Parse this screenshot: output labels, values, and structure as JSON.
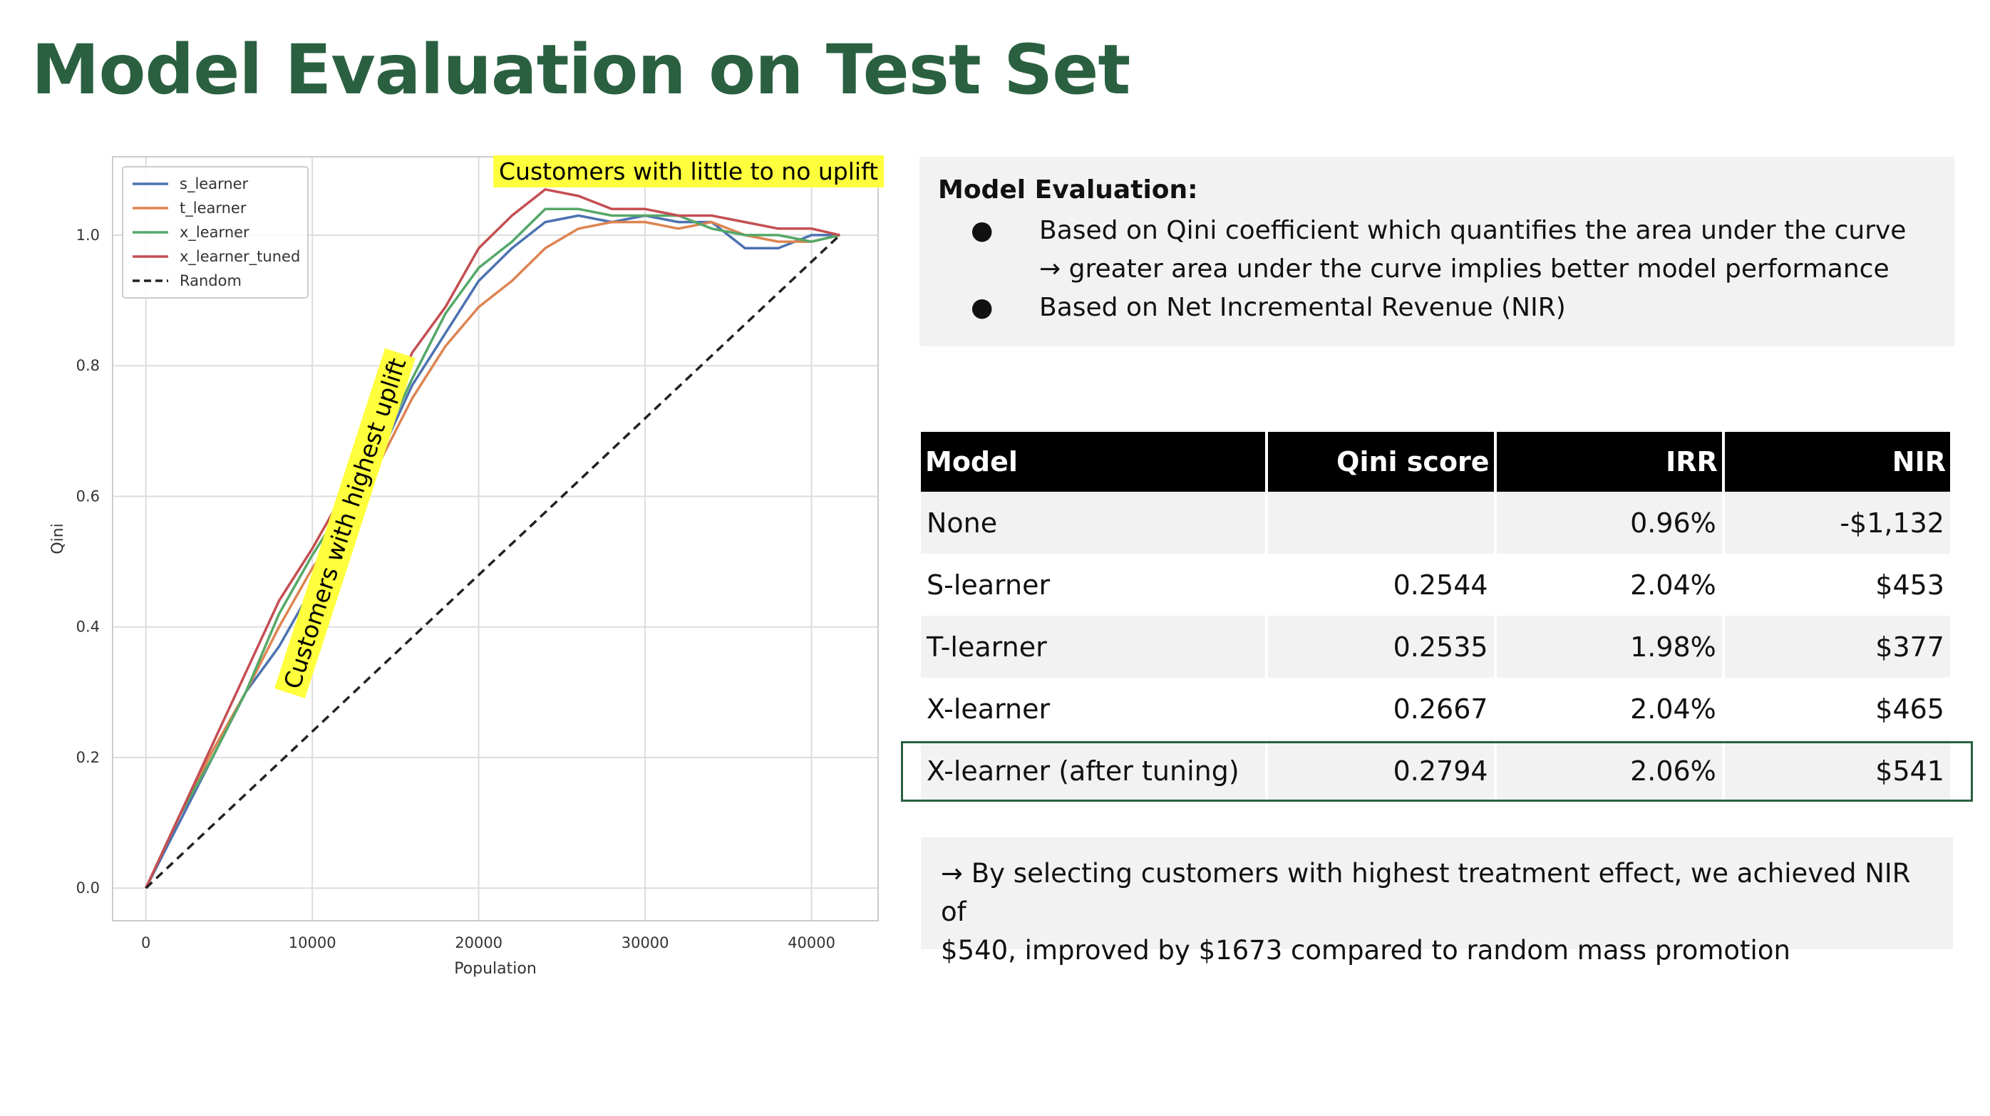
{
  "page": {
    "title": "Model Evaluation on Test Set"
  },
  "colors": {
    "title": "#2a6040",
    "highlight": "#ffff3d",
    "box_bg": "#f2f2f2",
    "header_bg": "#000000",
    "frame": "#2a6040"
  },
  "chart_data": {
    "type": "line",
    "xlabel": "Population",
    "ylabel": "Qini",
    "xlim": [
      -2000,
      44000
    ],
    "ylim": [
      -0.05,
      1.12
    ],
    "xticks": [
      0,
      10000,
      20000,
      30000,
      40000
    ],
    "xtick_labels": [
      "0",
      "10000",
      "20000",
      "30000",
      "40000"
    ],
    "yticks": [
      0.0,
      0.2,
      0.4,
      0.6,
      0.8,
      1.0
    ],
    "ytick_labels": [
      "0.0",
      "0.2",
      "0.4",
      "0.6",
      "0.8",
      "1.0"
    ],
    "grid": true,
    "legend_position": "top-left",
    "annotations": [
      "Customers with little to no uplift",
      "Customers with highest uplift"
    ],
    "series": [
      {
        "name": "s_learner",
        "color": "#4c72b0",
        "dash": false,
        "x": [
          0,
          2000,
          4000,
          6000,
          8000,
          10000,
          12000,
          14000,
          16000,
          18000,
          20000,
          22000,
          24000,
          26000,
          28000,
          30000,
          32000,
          34000,
          36000,
          38000,
          40000,
          41700
        ],
        "y": [
          0.0,
          0.1,
          0.2,
          0.3,
          0.37,
          0.46,
          0.55,
          0.66,
          0.77,
          0.85,
          0.93,
          0.98,
          1.02,
          1.03,
          1.02,
          1.03,
          1.02,
          1.02,
          0.98,
          0.98,
          1.0,
          1.0
        ]
      },
      {
        "name": "t_learner",
        "color": "#dd8452",
        "dash": false,
        "x": [
          0,
          2000,
          4000,
          6000,
          8000,
          10000,
          12000,
          14000,
          16000,
          18000,
          20000,
          22000,
          24000,
          26000,
          28000,
          30000,
          32000,
          34000,
          36000,
          38000,
          40000,
          41700
        ],
        "y": [
          0.0,
          0.11,
          0.21,
          0.3,
          0.4,
          0.49,
          0.56,
          0.65,
          0.75,
          0.83,
          0.89,
          0.93,
          0.98,
          1.01,
          1.02,
          1.02,
          1.01,
          1.02,
          1.0,
          0.99,
          0.99,
          1.0
        ]
      },
      {
        "name": "x_learner",
        "color": "#55a868",
        "dash": false,
        "x": [
          0,
          2000,
          4000,
          6000,
          8000,
          10000,
          12000,
          14000,
          16000,
          18000,
          20000,
          22000,
          24000,
          26000,
          28000,
          30000,
          32000,
          34000,
          36000,
          38000,
          40000,
          41700
        ],
        "y": [
          0.0,
          0.11,
          0.2,
          0.3,
          0.42,
          0.51,
          0.59,
          0.67,
          0.78,
          0.88,
          0.95,
          0.99,
          1.04,
          1.04,
          1.03,
          1.03,
          1.03,
          1.01,
          1.0,
          1.0,
          0.99,
          1.0
        ]
      },
      {
        "name": "x_learner_tuned",
        "color": "#c44e52",
        "dash": false,
        "x": [
          0,
          2000,
          4000,
          6000,
          8000,
          10000,
          12000,
          14000,
          16000,
          18000,
          20000,
          22000,
          24000,
          26000,
          28000,
          30000,
          32000,
          34000,
          36000,
          38000,
          40000,
          41700
        ],
        "y": [
          0.0,
          0.11,
          0.22,
          0.33,
          0.44,
          0.52,
          0.61,
          0.7,
          0.82,
          0.89,
          0.98,
          1.03,
          1.07,
          1.06,
          1.04,
          1.04,
          1.03,
          1.03,
          1.02,
          1.01,
          1.01,
          1.0
        ]
      },
      {
        "name": "Random",
        "color": "#222222",
        "dash": true,
        "x": [
          0,
          41700
        ],
        "y": [
          0.0,
          1.0
        ]
      }
    ]
  },
  "evaluation": {
    "heading": "Model Evaluation:",
    "bullet1": "Based on Qini coefficient which quantifies the area under the curve",
    "bullet1_sub": "→ greater area under the curve implies better model performance",
    "bullet2": "Based on Net Incremental Revenue (NIR)",
    "bullet_char": "●"
  },
  "table": {
    "headers": [
      "Model",
      "Qini score",
      "IRR",
      "NIR"
    ],
    "rows": [
      [
        "None",
        "",
        "0.96%",
        "-$1,132"
      ],
      [
        "S-learner",
        "0.2544",
        "2.04%",
        "$453"
      ],
      [
        "T-learner",
        "0.2535",
        "1.98%",
        "$377"
      ],
      [
        "X-learner",
        "0.2667",
        "2.04%",
        "$465"
      ],
      [
        "X-learner (after tuning)",
        "0.2794",
        "2.06%",
        "$541"
      ]
    ]
  },
  "conclusion": {
    "line1": "→ By selecting customers with highest treatment effect, we achieved NIR of",
    "line2": "$540, improved by $1673 compared to random mass promotion"
  }
}
